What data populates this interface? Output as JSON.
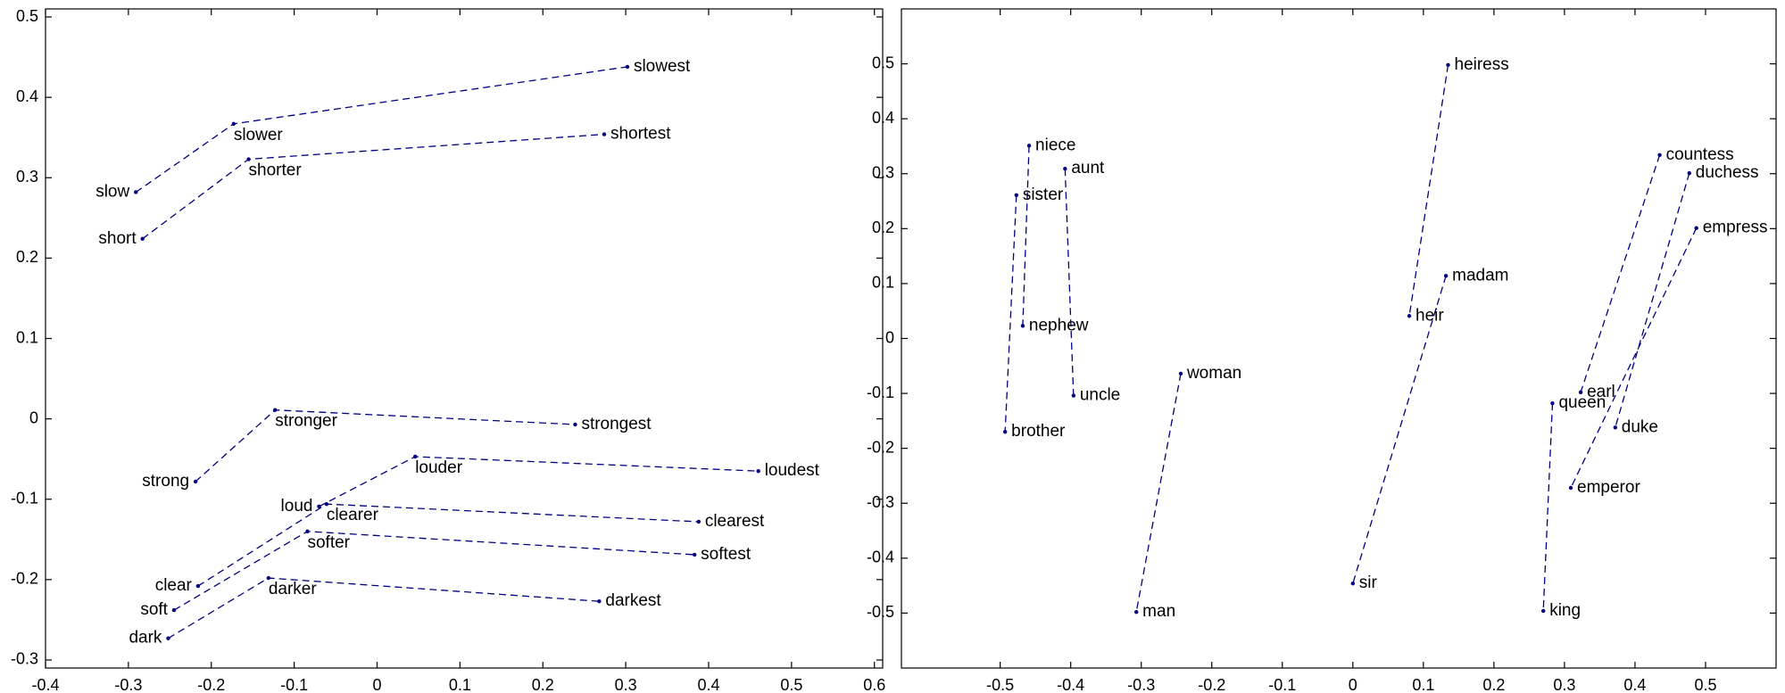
{
  "chart_data": [
    {
      "type": "scatter",
      "color": "#000080",
      "xlim": [
        -0.4,
        0.61
      ],
      "ylim": [
        -0.31,
        0.51
      ],
      "xticks": [
        -0.4,
        -0.3,
        -0.2,
        -0.1,
        0,
        0.1,
        0.2,
        0.3,
        0.4,
        0.5,
        0.6
      ],
      "yticks": [
        -0.3,
        -0.2,
        -0.1,
        0,
        0.1,
        0.2,
        0.3,
        0.4,
        0.5
      ],
      "series": [
        {
          "labels": [
            "slow",
            "slower",
            "slowest"
          ],
          "x": [
            -0.291,
            -0.173,
            0.302
          ],
          "y": [
            0.282,
            0.367,
            0.438
          ]
        },
        {
          "labels": [
            "short",
            "shorter",
            "shortest"
          ],
          "x": [
            -0.283,
            -0.155,
            0.274
          ],
          "y": [
            0.224,
            0.323,
            0.354
          ]
        },
        {
          "labels": [
            "strong",
            "stronger",
            "strongest"
          ],
          "x": [
            -0.219,
            -0.123,
            0.239
          ],
          "y": [
            -0.078,
            0.011,
            -0.007
          ]
        },
        {
          "labels": [
            "loud",
            "louder",
            "loudest"
          ],
          "x": [
            -0.07,
            0.046,
            0.46
          ],
          "y": [
            -0.109,
            -0.047,
            -0.065
          ]
        },
        {
          "labels": [
            "clear",
            "clearer",
            "clearest"
          ],
          "x": [
            -0.216,
            -0.061,
            0.388
          ],
          "y": [
            -0.208,
            -0.106,
            -0.128
          ]
        },
        {
          "labels": [
            "soft",
            "softer",
            "softest"
          ],
          "x": [
            -0.245,
            -0.084,
            0.383
          ],
          "y": [
            -0.238,
            -0.14,
            -0.169
          ]
        },
        {
          "labels": [
            "dark",
            "darker",
            "darkest"
          ],
          "x": [
            -0.252,
            -0.131,
            0.268
          ],
          "y": [
            -0.273,
            -0.198,
            -0.227
          ]
        }
      ]
    },
    {
      "type": "scatter",
      "color": "#000080",
      "xlim": [
        -0.64,
        0.6
      ],
      "ylim": [
        -0.6,
        0.6
      ],
      "xticks": [
        -0.5,
        -0.4,
        -0.3,
        -0.2,
        -0.1,
        0,
        0.1,
        0.2,
        0.3,
        0.4,
        0.5
      ],
      "yticks": [
        -0.5,
        -0.4,
        -0.3,
        -0.2,
        -0.1,
        0,
        0.1,
        0.2,
        0.3,
        0.4,
        0.5
      ],
      "series": [
        {
          "labels": [
            "niece",
            "nephew"
          ],
          "x": [
            -0.459,
            -0.468
          ],
          "y": [
            0.351,
            0.023
          ]
        },
        {
          "labels": [
            "sister",
            "brother"
          ],
          "x": [
            -0.477,
            -0.493
          ],
          "y": [
            0.261,
            -0.17
          ]
        },
        {
          "labels": [
            "aunt",
            "uncle"
          ],
          "x": [
            -0.408,
            -0.396
          ],
          "y": [
            0.309,
            -0.104
          ]
        },
        {
          "labels": [
            "woman",
            "man"
          ],
          "x": [
            -0.244,
            -0.307
          ],
          "y": [
            -0.064,
            -0.498
          ]
        },
        {
          "labels": [
            "heiress",
            "heir"
          ],
          "x": [
            0.135,
            0.08
          ],
          "y": [
            0.498,
            0.041
          ]
        },
        {
          "labels": [
            "madam",
            "sir"
          ],
          "x": [
            0.132,
            0.0
          ],
          "y": [
            0.114,
            -0.446
          ]
        },
        {
          "labels": [
            "countess",
            "earl"
          ],
          "x": [
            0.435,
            0.323
          ],
          "y": [
            0.334,
            -0.098
          ]
        },
        {
          "labels": [
            "duchess",
            "duke"
          ],
          "x": [
            0.477,
            0.372
          ],
          "y": [
            0.301,
            -0.162
          ]
        },
        {
          "labels": [
            "empress",
            "emperor"
          ],
          "x": [
            0.487,
            0.309
          ],
          "y": [
            0.201,
            -0.272
          ]
        },
        {
          "labels": [
            "queen",
            "king"
          ],
          "x": [
            0.283,
            0.27
          ],
          "y": [
            -0.118,
            -0.496
          ]
        }
      ]
    }
  ]
}
